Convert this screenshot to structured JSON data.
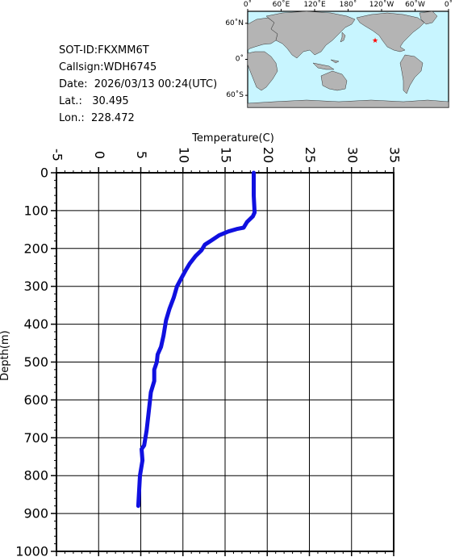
{
  "info": {
    "sot_id": "SOT-ID:FKXMM6T",
    "callsign": "Callsign:WDH6745",
    "date": "Date:  2026/03/13 00:24(UTC)",
    "lat": "Lat.:   30.495",
    "lon": "Lon.:  228.472"
  },
  "map": {
    "lon_labels": [
      "0˚",
      "60˚E",
      "120˚E",
      "180˚",
      "120˚W",
      "60˚W",
      "0˚"
    ],
    "lat_labels": [
      "60˚N",
      "0˚",
      "60˚S"
    ],
    "ocean_color": "#c8f5ff",
    "land_color": "#b4b4b4",
    "marker": {
      "lat": 30.495,
      "lon": 228.472,
      "symbol": "★",
      "color": "#ff0000"
    }
  },
  "chart_data": {
    "type": "line",
    "xlabel": "Temperature(C)",
    "ylabel": "Depth(m)",
    "xlim": [
      -5,
      35
    ],
    "ylim": [
      0,
      1000
    ],
    "y_inverted": true,
    "x_axis_position": "top",
    "x_ticks": [
      -5,
      0,
      5,
      10,
      15,
      20,
      25,
      30,
      35
    ],
    "y_ticks": [
      0,
      100,
      200,
      300,
      400,
      500,
      600,
      700,
      800,
      900,
      1000
    ],
    "grid": true,
    "series": [
      {
        "color": "#1010e0",
        "temperature": [
          18.4,
          18.4,
          18.4,
          18.5,
          18.3,
          17.6,
          17.2,
          16.5,
          15.4,
          14.3,
          13.3,
          12.6,
          12.2,
          11.5,
          10.8,
          10.4,
          9.9,
          9.3,
          8.9,
          8.4,
          8.0,
          7.7,
          7.4,
          7.0,
          6.9,
          6.6,
          6.6,
          6.2,
          6.1,
          5.9,
          5.7,
          5.4,
          5.1,
          5.2,
          4.9,
          4.7
        ],
        "depth": [
          0,
          20,
          60,
          105,
          115,
          130,
          145,
          148,
          155,
          165,
          180,
          190,
          205,
          220,
          240,
          255,
          275,
          300,
          330,
          360,
          390,
          430,
          460,
          480,
          500,
          520,
          550,
          580,
          600,
          640,
          680,
          720,
          730,
          760,
          800,
          880
        ]
      }
    ]
  }
}
